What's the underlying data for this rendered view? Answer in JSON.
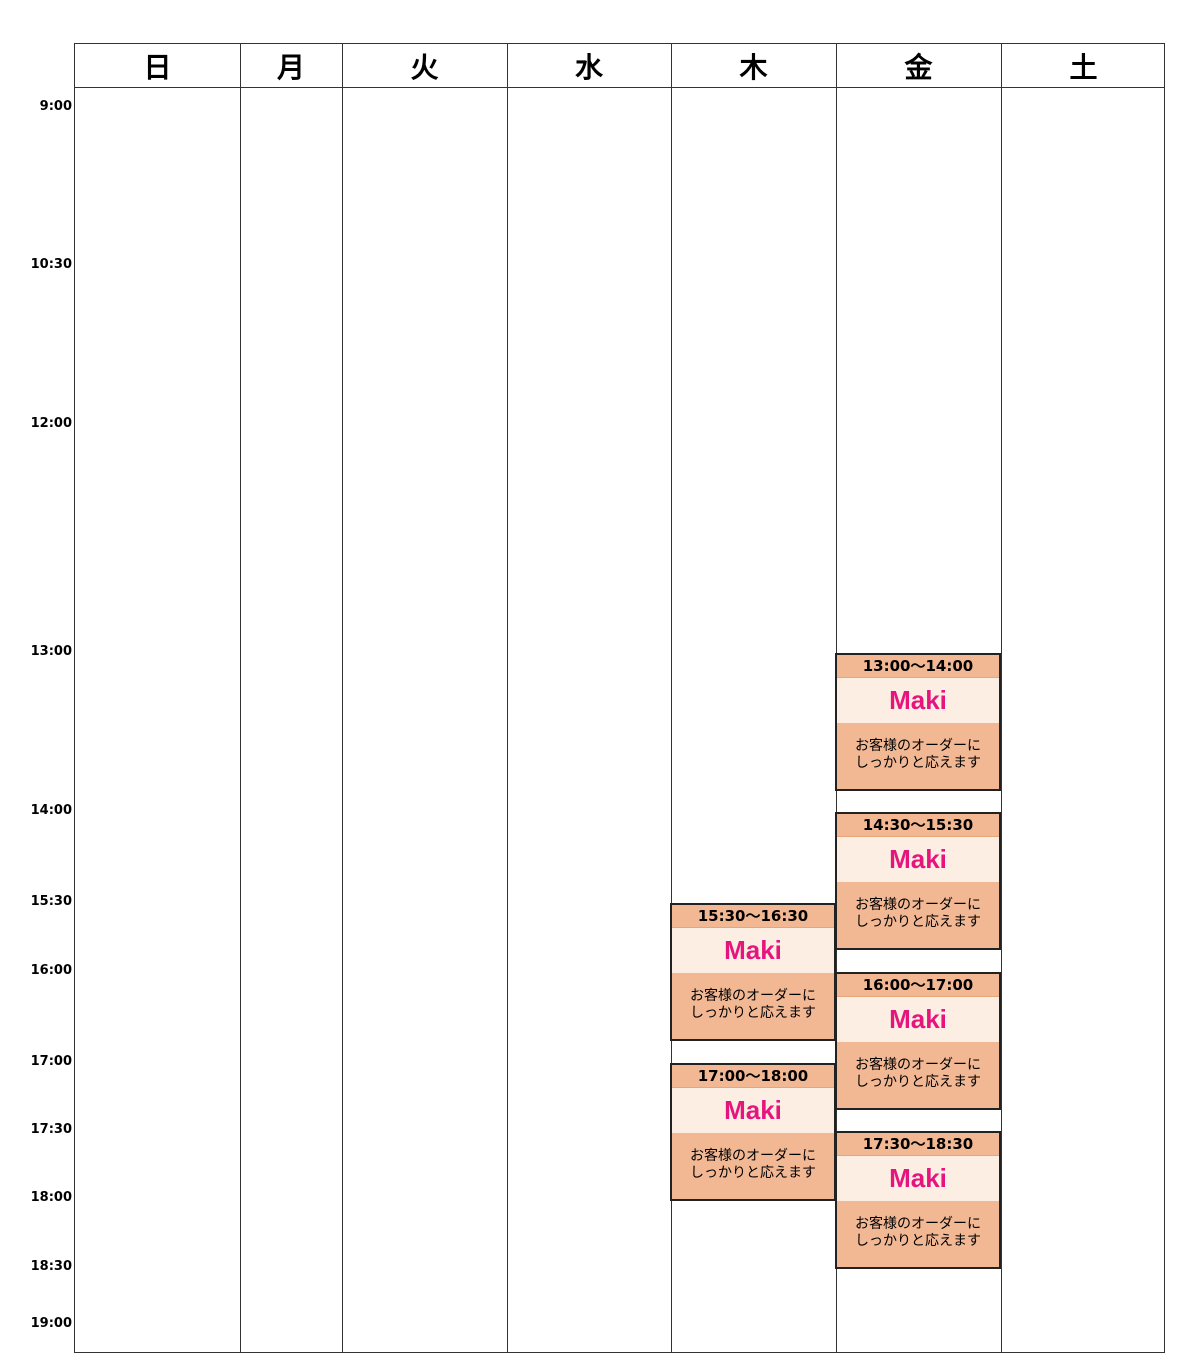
{
  "days": [
    "日",
    "月",
    "火",
    "水",
    "木",
    "金",
    "土"
  ],
  "time_labels": [
    {
      "label": "9:00"
    },
    {
      "label": "10:30"
    },
    {
      "label": "12:00"
    },
    {
      "label": "13:00"
    },
    {
      "label": "14:00"
    },
    {
      "label": "15:30"
    },
    {
      "label": "16:00"
    },
    {
      "label": "17:00"
    },
    {
      "label": "17:30"
    },
    {
      "label": "18:00"
    },
    {
      "label": "18:30"
    },
    {
      "label": "19:00"
    }
  ],
  "events": [
    {
      "day": "金",
      "time": "13:00〜14:00",
      "name": "Maki",
      "description_line1": "お客様のオーダーに",
      "description_line2": "しっかりと応えます"
    },
    {
      "day": "金",
      "time": "14:30〜15:30",
      "name": "Maki",
      "description_line1": "お客様のオーダーに",
      "description_line2": "しっかりと応えます"
    },
    {
      "day": "木",
      "time": "15:30〜16:30",
      "name": "Maki",
      "description_line1": "お客様のオーダーに",
      "description_line2": "しっかりと応えます"
    },
    {
      "day": "金",
      "time": "16:00〜17:00",
      "name": "Maki",
      "description_line1": "お客様のオーダーに",
      "description_line2": "しっかりと応えます"
    },
    {
      "day": "木",
      "time": "17:00〜18:00",
      "name": "Maki",
      "description_line1": "お客様のオーダーに",
      "description_line2": "しっかりと応えます"
    },
    {
      "day": "金",
      "time": "17:30〜18:30",
      "name": "Maki",
      "description_line1": "お客様のオーダーに",
      "description_line2": "しっかりと応えます"
    }
  ],
  "colors": {
    "event_header": "#f2b894",
    "event_name_bg": "#fdeee4",
    "event_name_text": "#e5157d",
    "grid_line": "#333333"
  }
}
